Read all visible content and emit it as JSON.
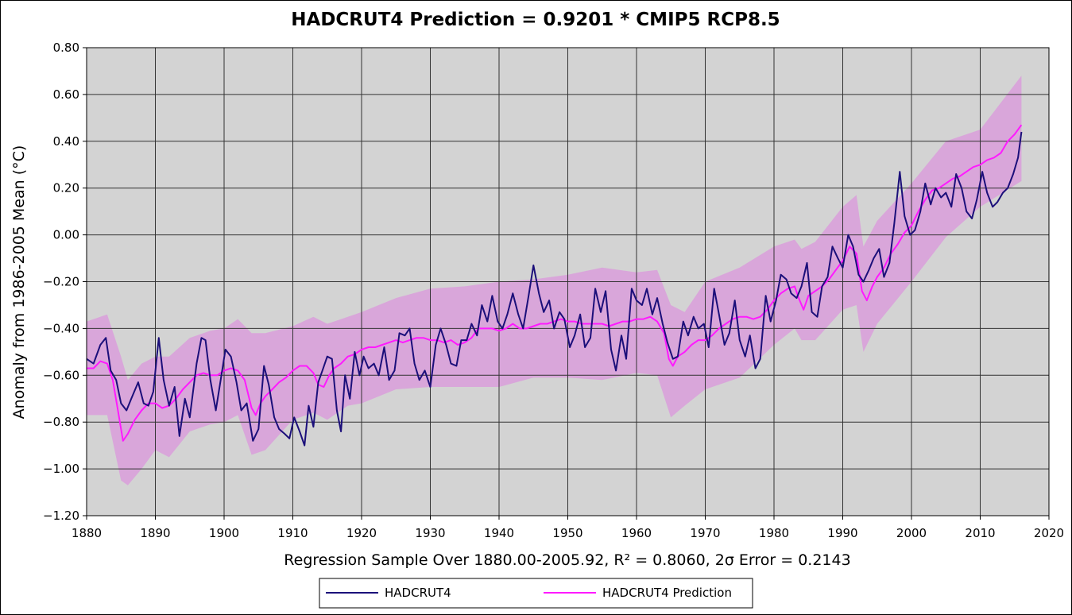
{
  "chart_data": {
    "type": "line",
    "title": "HADCRUT4 Prediction = 0.9201 * CMIP5 RCP8.5",
    "xlabel": "Regression Sample Over 1880.00-2005.92, R² = 0.8060, 2σ Error = 0.2143",
    "ylabel": "Anomaly from 1986-2005 Mean (°C)",
    "xlim": [
      1880,
      2020
    ],
    "ylim": [
      -1.2,
      0.8
    ],
    "xticks": [
      1880,
      1890,
      1900,
      1910,
      1920,
      1930,
      1940,
      1950,
      1960,
      1970,
      1980,
      1990,
      2000,
      2010,
      2020
    ],
    "yticks": [
      "0.80",
      "0.60",
      "0.40",
      "0.20",
      "0.00",
      "−0.20",
      "−0.40",
      "−0.60",
      "−0.80",
      "−1.00",
      "−1.20"
    ],
    "ytick_values": [
      0.8,
      0.6,
      0.4,
      0.2,
      0.0,
      -0.2,
      -0.4,
      -0.6,
      -0.8,
      -1.0,
      -1.2
    ],
    "grid": true,
    "legend_position": "bottom-center",
    "colors": {
      "plot_background": "#d3d3d3",
      "band": "#d9a6da",
      "observed": "#1b0f7a",
      "prediction": "#ff1aff"
    },
    "series": [
      {
        "name": "HADCRUT4",
        "x": [
          1880,
          1881,
          1882,
          1882.8,
          1883.5,
          1884.3,
          1885,
          1885.8,
          1886.5,
          1887.5,
          1888.3,
          1889,
          1889.7,
          1890.5,
          1891.2,
          1892,
          1892.8,
          1893.5,
          1894.3,
          1895,
          1896,
          1896.7,
          1897.3,
          1898,
          1898.8,
          1899.5,
          1900.2,
          1901,
          1901.8,
          1902.5,
          1903.3,
          1904.2,
          1905,
          1905.8,
          1906.5,
          1907.3,
          1908,
          1908.8,
          1909.5,
          1910.2,
          1911,
          1911.7,
          1912.3,
          1913,
          1913.7,
          1914.3,
          1915,
          1915.7,
          1916.4,
          1917,
          1917.6,
          1918.3,
          1919,
          1919.7,
          1920.3,
          1921,
          1921.8,
          1922.5,
          1923.3,
          1924,
          1924.8,
          1925.5,
          1926.3,
          1927,
          1927.7,
          1928.4,
          1929.2,
          1930,
          1930.8,
          1931.5,
          1932.3,
          1933,
          1933.8,
          1934.5,
          1935.3,
          1936,
          1936.8,
          1937.5,
          1938.3,
          1939,
          1939.8,
          1940.5,
          1941.2,
          1942,
          1942.8,
          1943.5,
          1944.3,
          1945,
          1945.8,
          1946.5,
          1947.3,
          1948,
          1948.8,
          1949.5,
          1950.3,
          1951,
          1951.8,
          1952.5,
          1953.3,
          1954,
          1954.8,
          1955.5,
          1956.3,
          1957,
          1957.8,
          1958.5,
          1959.3,
          1960,
          1960.8,
          1961.5,
          1962.3,
          1963,
          1963.8,
          1964.5,
          1965.3,
          1966,
          1966.8,
          1967.5,
          1968.3,
          1969,
          1969.8,
          1970.5,
          1971.3,
          1972,
          1972.8,
          1973.5,
          1974.3,
          1975,
          1975.8,
          1976.5,
          1977.3,
          1978,
          1978.8,
          1979.5,
          1980.3,
          1981,
          1981.8,
          1982.5,
          1983.3,
          1984,
          1984.8,
          1985.5,
          1986.3,
          1987,
          1987.8,
          1988.5,
          1989.3,
          1990,
          1990.8,
          1991.5,
          1992.3,
          1993,
          1993.8,
          1994.5,
          1995.3,
          1996,
          1996.8,
          1997.5,
          1998.3,
          1999,
          1999.8,
          2000.5,
          2001.3,
          2002,
          2002.8,
          2003.5,
          2004.3,
          2005,
          2005.8,
          2006.5,
          2007.3,
          2008,
          2008.8,
          2009.5,
          2010.3,
          2011,
          2011.8,
          2012.5,
          2013.3,
          2014,
          2014.8,
          2015.5,
          2016
        ],
        "values": [
          -0.53,
          -0.55,
          -0.47,
          -0.44,
          -0.58,
          -0.62,
          -0.72,
          -0.75,
          -0.7,
          -0.63,
          -0.72,
          -0.73,
          -0.67,
          -0.44,
          -0.62,
          -0.73,
          -0.65,
          -0.86,
          -0.7,
          -0.78,
          -0.55,
          -0.44,
          -0.45,
          -0.62,
          -0.75,
          -0.62,
          -0.49,
          -0.52,
          -0.63,
          -0.75,
          -0.72,
          -0.88,
          -0.83,
          -0.56,
          -0.64,
          -0.78,
          -0.83,
          -0.85,
          -0.87,
          -0.78,
          -0.84,
          -0.9,
          -0.73,
          -0.82,
          -0.63,
          -0.58,
          -0.52,
          -0.53,
          -0.75,
          -0.84,
          -0.6,
          -0.7,
          -0.5,
          -0.6,
          -0.52,
          -0.57,
          -0.55,
          -0.6,
          -0.48,
          -0.62,
          -0.58,
          -0.42,
          -0.43,
          -0.4,
          -0.55,
          -0.62,
          -0.58,
          -0.65,
          -0.47,
          -0.4,
          -0.47,
          -0.55,
          -0.56,
          -0.45,
          -0.45,
          -0.38,
          -0.43,
          -0.3,
          -0.37,
          -0.26,
          -0.37,
          -0.4,
          -0.34,
          -0.25,
          -0.34,
          -0.4,
          -0.26,
          -0.13,
          -0.25,
          -0.33,
          -0.28,
          -0.4,
          -0.33,
          -0.36,
          -0.48,
          -0.43,
          -0.34,
          -0.48,
          -0.44,
          -0.23,
          -0.33,
          -0.24,
          -0.49,
          -0.58,
          -0.43,
          -0.53,
          -0.23,
          -0.28,
          -0.3,
          -0.23,
          -0.34,
          -0.27,
          -0.38,
          -0.46,
          -0.53,
          -0.52,
          -0.37,
          -0.43,
          -0.35,
          -0.4,
          -0.38,
          -0.48,
          -0.23,
          -0.34,
          -0.47,
          -0.42,
          -0.28,
          -0.45,
          -0.52,
          -0.43,
          -0.57,
          -0.53,
          -0.26,
          -0.37,
          -0.28,
          -0.17,
          -0.19,
          -0.25,
          -0.27,
          -0.22,
          -0.12,
          -0.33,
          -0.35,
          -0.22,
          -0.18,
          -0.05,
          -0.1,
          -0.14,
          0.0,
          -0.05,
          -0.17,
          -0.2,
          -0.15,
          -0.1,
          -0.06,
          -0.18,
          -0.12,
          0.05,
          0.27,
          0.08,
          0.0,
          0.02,
          0.1,
          0.22,
          0.13,
          0.2,
          0.16,
          0.18,
          0.12,
          0.26,
          0.2,
          0.1,
          0.07,
          0.15,
          0.27,
          0.18,
          0.12,
          0.14,
          0.18,
          0.2,
          0.26,
          0.33,
          0.44
        ]
      },
      {
        "name": "HADCRUT4 Prediction",
        "x": [
          1880,
          1881,
          1882,
          1883,
          1883.8,
          1884.5,
          1885.3,
          1886,
          1887,
          1888,
          1889,
          1890,
          1891,
          1892,
          1893,
          1894,
          1895,
          1896,
          1897,
          1898,
          1899,
          1900,
          1901,
          1902,
          1903,
          1904,
          1904.6,
          1905.3,
          1906,
          1907,
          1908,
          1909,
          1910,
          1911,
          1912,
          1913,
          1913.7,
          1914.5,
          1915.3,
          1916,
          1917,
          1918,
          1919,
          1920,
          1921,
          1922,
          1923,
          1924,
          1925,
          1926,
          1927,
          1928,
          1929,
          1930,
          1931,
          1932,
          1933,
          1934,
          1935,
          1936,
          1937,
          1938,
          1939,
          1940,
          1941,
          1942,
          1943,
          1944,
          1945,
          1946,
          1947,
          1948,
          1949,
          1950,
          1951,
          1952,
          1953,
          1954,
          1955,
          1956,
          1957,
          1958,
          1959,
          1960,
          1961,
          1962,
          1963,
          1964,
          1964.7,
          1965.3,
          1966,
          1967,
          1968,
          1969,
          1970,
          1971,
          1972,
          1973,
          1974,
          1975,
          1976,
          1977,
          1978,
          1979,
          1980,
          1981,
          1982,
          1983,
          1983.6,
          1984.3,
          1985,
          1986,
          1987,
          1988,
          1989,
          1990,
          1991,
          1992,
          1992.8,
          1993.5,
          1994.3,
          1995,
          1996,
          1997,
          1998,
          1999,
          2000,
          2001,
          2002,
          2003,
          2004,
          2005,
          2006,
          2007,
          2008,
          2009,
          2010,
          2011,
          2012,
          2013,
          2014,
          2015,
          2016
        ],
        "values": [
          -0.57,
          -0.57,
          -0.54,
          -0.55,
          -0.62,
          -0.74,
          -0.88,
          -0.85,
          -0.79,
          -0.75,
          -0.72,
          -0.72,
          -0.74,
          -0.73,
          -0.7,
          -0.66,
          -0.63,
          -0.6,
          -0.59,
          -0.6,
          -0.6,
          -0.58,
          -0.57,
          -0.58,
          -0.62,
          -0.74,
          -0.77,
          -0.72,
          -0.69,
          -0.66,
          -0.63,
          -0.61,
          -0.58,
          -0.56,
          -0.56,
          -0.59,
          -0.64,
          -0.65,
          -0.6,
          -0.57,
          -0.55,
          -0.52,
          -0.51,
          -0.49,
          -0.48,
          -0.48,
          -0.47,
          -0.46,
          -0.45,
          -0.46,
          -0.45,
          -0.44,
          -0.44,
          -0.45,
          -0.45,
          -0.46,
          -0.45,
          -0.47,
          -0.46,
          -0.44,
          -0.4,
          -0.4,
          -0.4,
          -0.41,
          -0.4,
          -0.38,
          -0.4,
          -0.4,
          -0.39,
          -0.38,
          -0.38,
          -0.37,
          -0.36,
          -0.37,
          -0.37,
          -0.38,
          -0.38,
          -0.38,
          -0.38,
          -0.39,
          -0.38,
          -0.37,
          -0.37,
          -0.36,
          -0.36,
          -0.35,
          -0.37,
          -0.42,
          -0.53,
          -0.56,
          -0.52,
          -0.5,
          -0.47,
          -0.45,
          -0.45,
          -0.43,
          -0.4,
          -0.38,
          -0.36,
          -0.35,
          -0.35,
          -0.36,
          -0.35,
          -0.32,
          -0.28,
          -0.25,
          -0.23,
          -0.22,
          -0.27,
          -0.32,
          -0.26,
          -0.24,
          -0.22,
          -0.19,
          -0.15,
          -0.11,
          -0.05,
          -0.08,
          -0.24,
          -0.28,
          -0.22,
          -0.18,
          -0.14,
          -0.08,
          -0.04,
          0.01,
          0.04,
          0.1,
          0.15,
          0.19,
          0.2,
          0.22,
          0.24,
          0.25,
          0.27,
          0.29,
          0.3,
          0.32,
          0.33,
          0.35,
          0.4,
          0.43,
          0.47
        ]
      },
      {
        "name": "",
        "x": [
          1880,
          1883,
          1885,
          1886,
          1888,
          1890,
          1892,
          1895,
          1898,
          1900,
          1902,
          1904,
          1906,
          1910,
          1913,
          1915,
          1918,
          1920,
          1925,
          1930,
          1935,
          1940,
          1945,
          1950,
          1955,
          1960,
          1963,
          1965,
          1967,
          1970,
          1975,
          1980,
          1983,
          1984,
          1986,
          1990,
          1992,
          1993,
          1995,
          2000,
          2005,
          2010,
          2016
        ],
        "upper": [
          -0.37,
          -0.34,
          -0.52,
          -0.62,
          -0.55,
          -0.52,
          -0.52,
          -0.44,
          -0.41,
          -0.4,
          -0.36,
          -0.42,
          -0.42,
          -0.39,
          -0.35,
          -0.38,
          -0.35,
          -0.33,
          -0.27,
          -0.23,
          -0.22,
          -0.2,
          -0.19,
          -0.17,
          -0.14,
          -0.16,
          -0.15,
          -0.3,
          -0.33,
          -0.2,
          -0.14,
          -0.05,
          -0.02,
          -0.06,
          -0.03,
          0.12,
          0.17,
          -0.05,
          0.06,
          0.22,
          0.4,
          0.45,
          0.68
        ],
        "lower": [
          -0.77,
          -0.77,
          -1.05,
          -1.07,
          -1.0,
          -0.92,
          -0.95,
          -0.84,
          -0.81,
          -0.8,
          -0.77,
          -0.94,
          -0.92,
          -0.79,
          -0.76,
          -0.79,
          -0.73,
          -0.72,
          -0.66,
          -0.65,
          -0.65,
          -0.65,
          -0.61,
          -0.61,
          -0.62,
          -0.59,
          -0.6,
          -0.78,
          -0.73,
          -0.66,
          -0.61,
          -0.47,
          -0.4,
          -0.45,
          -0.45,
          -0.32,
          -0.3,
          -0.5,
          -0.38,
          -0.2,
          -0.01,
          0.12,
          0.23
        ]
      }
    ]
  }
}
